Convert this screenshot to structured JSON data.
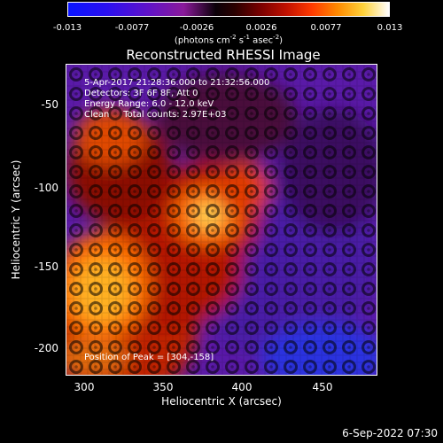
{
  "colorbar": {
    "ticks": [
      "-0.013",
      "-0.0077",
      "-0.0026",
      "0.0026",
      "0.0077",
      "0.013"
    ],
    "units": [
      "(photons cm",
      "-2",
      " s",
      "-1",
      " asec",
      "-2",
      ")"
    ]
  },
  "image": {
    "title": "Reconstructed RHESSI Image",
    "info": {
      "time": "5-Apr-2017 21:28:36.000 to 21:32:56.000",
      "detectors": "Detectors: 3F 6F 8F, Att 0",
      "energy": "Energy Range: 6.0 - 12.0 keV",
      "clean": "Clean     Total counts: 2.97E+03",
      "peak": "Position of Peak = [304,-158]"
    },
    "x_axis": {
      "label": "Heliocentric X (arcsec)",
      "ticks": [
        "300",
        "350",
        "400",
        "450"
      ]
    },
    "y_axis": {
      "label": "Heliocentric Y (arcsec)",
      "ticks": [
        "-50",
        "-100",
        "-150",
        "-200"
      ]
    }
  },
  "datestamp": "6-Sep-2022 07:30"
}
